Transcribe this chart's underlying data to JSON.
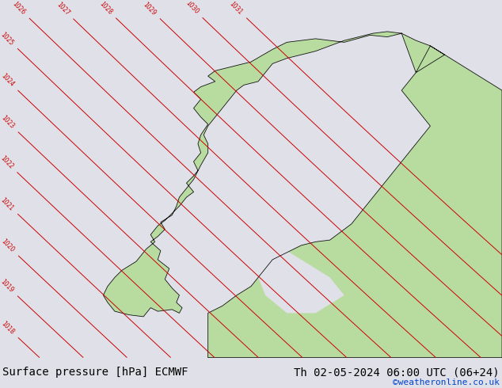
{
  "title_left": "Surface pressure [hPa] ECMWF",
  "title_right": "Th 02-05-2024 06:00 UTC (06+24)",
  "watermark": "©weatheronline.co.uk",
  "bg_color": "#e8e8e8",
  "ocean_color": "#e0e0e8",
  "land_color": "#b8dca0",
  "border_color": "#111111",
  "isobar_red_color": "#cc0000",
  "isobar_blue_color": "#0000bb",
  "label_color_red": "#cc0000",
  "label_color_blue": "#0000bb",
  "title_fontsize": 10,
  "watermark_color": "#0044cc",
  "watermark_fontsize": 8,
  "fig_width": 6.34,
  "fig_height": 4.9,
  "dpi": 100
}
